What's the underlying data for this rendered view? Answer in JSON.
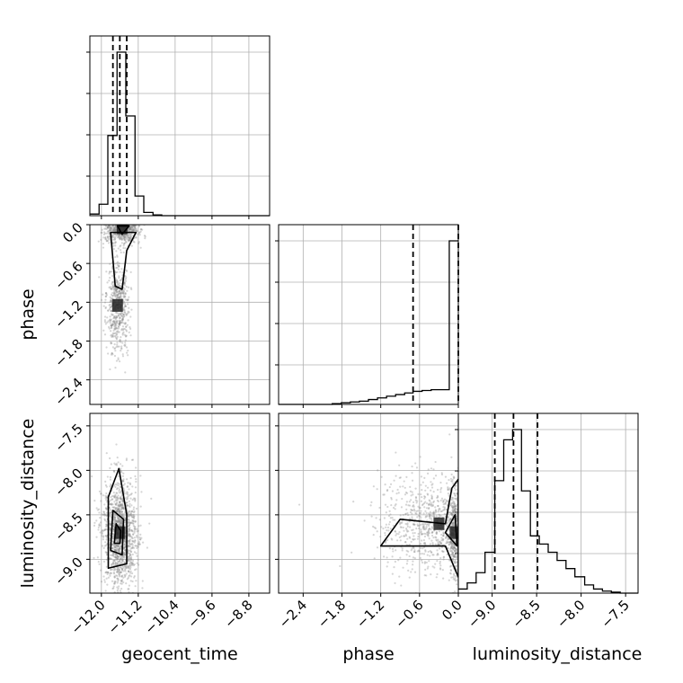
{
  "chart_data": {
    "type": "corner",
    "parameters": [
      "geocent_time",
      "phase",
      "luminosity_distance"
    ],
    "axis_labels": {
      "geocent_time": "geocent_time",
      "phase": "phase",
      "luminosity_distance": "luminosity_distance"
    },
    "ranges": {
      "geocent_time": [
        -12.25,
        -8.35
      ],
      "phase": [
        -2.78,
        0.0
      ],
      "luminosity_distance": [
        -9.38,
        -7.36
      ]
    },
    "ticks": {
      "geocent_time": [
        -12.0,
        -11.2,
        -10.4,
        -9.6,
        -8.8
      ],
      "phase": [
        -2.4,
        -1.8,
        -1.2,
        -0.6,
        0.0
      ],
      "luminosity_distance": [
        -9.0,
        -8.5,
        -8.0,
        -7.5
      ]
    },
    "tick_labels": {
      "geocent_time": [
        "−12.0",
        "−11.2",
        "−10.4",
        "−9.6",
        "−8.8"
      ],
      "phase": [
        "−2.4",
        "−1.8",
        "−1.2",
        "−0.6",
        "0.0"
      ],
      "luminosity_distance": [
        "−9.0",
        "−8.5",
        "−8.0",
        "−7.5"
      ]
    },
    "grid": true,
    "histograms": {
      "geocent_time": {
        "bin_edges": [
          -12.25,
          -12.05,
          -11.86,
          -11.66,
          -11.47,
          -11.27,
          -11.08,
          -10.88,
          -10.69,
          -10.49,
          -10.3,
          -10.1,
          -9.91,
          -9.71,
          -9.52,
          -9.32,
          -9.13,
          -8.93,
          -8.74,
          -8.54,
          -8.35
        ],
        "counts": [
          0.01,
          0.07,
          0.49,
          1.0,
          0.61,
          0.12,
          0.02,
          0.005,
          0,
          0,
          0,
          0,
          0,
          0,
          0,
          0,
          0,
          0,
          0,
          0
        ],
        "quantiles": [
          -11.75,
          -11.6,
          -11.45
        ]
      },
      "phase": {
        "bin_edges": [
          -2.78,
          -2.64,
          -2.5,
          -2.36,
          -2.22,
          -2.09,
          -1.95,
          -1.81,
          -1.67,
          -1.53,
          -1.39,
          -1.25,
          -1.11,
          -0.97,
          -0.83,
          -0.7,
          -0.56,
          -0.42,
          -0.28,
          -0.14,
          0.0
        ],
        "counts": [
          0,
          0,
          0,
          0,
          0,
          0,
          0.005,
          0.01,
          0.015,
          0.02,
          0.03,
          0.04,
          0.05,
          0.06,
          0.07,
          0.08,
          0.085,
          0.09,
          0.09,
          1.0
        ],
        "quantiles": [
          -0.7,
          0.0
        ]
      },
      "luminosity_distance": {
        "bin_edges": [
          -9.38,
          -9.28,
          -9.18,
          -9.08,
          -8.97,
          -8.87,
          -8.77,
          -8.67,
          -8.57,
          -8.47,
          -8.37,
          -8.27,
          -8.17,
          -8.07,
          -7.96,
          -7.86,
          -7.76,
          -7.66,
          -7.56,
          -7.46,
          -7.36
        ],
        "counts": [
          0.02,
          0.05,
          0.1,
          0.2,
          0.55,
          0.75,
          0.8,
          0.5,
          0.28,
          0.24,
          0.2,
          0.16,
          0.12,
          0.08,
          0.04,
          0.02,
          0.01,
          0.005,
          0,
          0
        ],
        "quantiles": [
          -8.97,
          -8.76,
          -8.49
        ]
      }
    },
    "scatter": {
      "phase_vs_geocent_time": {
        "centers": [
          [
            -11.55,
            -0.05
          ],
          [
            -11.65,
            -1.25
          ]
        ],
        "spreads": [
          [
            0.18,
            0.12
          ],
          [
            0.12,
            0.35
          ]
        ],
        "weights": [
          0.6,
          0.4
        ],
        "contours": [
          [
            [
              -11.8,
              -0.12
            ],
            [
              -11.7,
              -0.95
            ],
            [
              -11.55,
              -1.0
            ],
            [
              -11.45,
              -0.4
            ],
            [
              -11.25,
              -0.12
            ]
          ],
          [
            [
              -11.65,
              -0.02
            ],
            [
              -11.55,
              -0.15
            ],
            [
              -11.4,
              -0.02
            ]
          ]
        ]
      },
      "luminosity_distance_vs_geocent_time": {
        "centers": [
          [
            -11.6,
            -8.7
          ]
        ],
        "spreads": [
          [
            0.18,
            0.3
          ]
        ],
        "weights": [
          1.0
        ],
        "contours": [
          [
            [
              -11.85,
              -9.1
            ],
            [
              -11.85,
              -8.3
            ],
            [
              -11.62,
              -7.98
            ],
            [
              -11.45,
              -8.5
            ],
            [
              -11.45,
              -9.05
            ]
          ],
          [
            [
              -11.8,
              -8.9
            ],
            [
              -11.75,
              -8.45
            ],
            [
              -11.52,
              -8.55
            ],
            [
              -11.55,
              -8.95
            ]
          ],
          [
            [
              -11.72,
              -8.82
            ],
            [
              -11.68,
              -8.6
            ],
            [
              -11.58,
              -8.68
            ],
            [
              -11.6,
              -8.82
            ]
          ]
        ]
      },
      "luminosity_distance_vs_phase": {
        "centers": [
          [
            -0.3,
            -8.6
          ],
          [
            -0.05,
            -8.7
          ]
        ],
        "spreads": [
          [
            0.45,
            0.28
          ],
          [
            0.05,
            0.25
          ]
        ],
        "weights": [
          0.7,
          0.3
        ],
        "contours": [
          [
            [
              -1.2,
              -8.85
            ],
            [
              -0.9,
              -8.55
            ],
            [
              -0.2,
              -8.6
            ],
            [
              -0.1,
              -8.2
            ],
            [
              0.0,
              -8.1
            ],
            [
              0.0,
              -9.2
            ],
            [
              -0.2,
              -8.85
            ]
          ],
          [
            [
              -0.2,
              -8.7
            ],
            [
              -0.05,
              -8.5
            ],
            [
              -0.02,
              -8.85
            ]
          ]
        ]
      }
    }
  }
}
